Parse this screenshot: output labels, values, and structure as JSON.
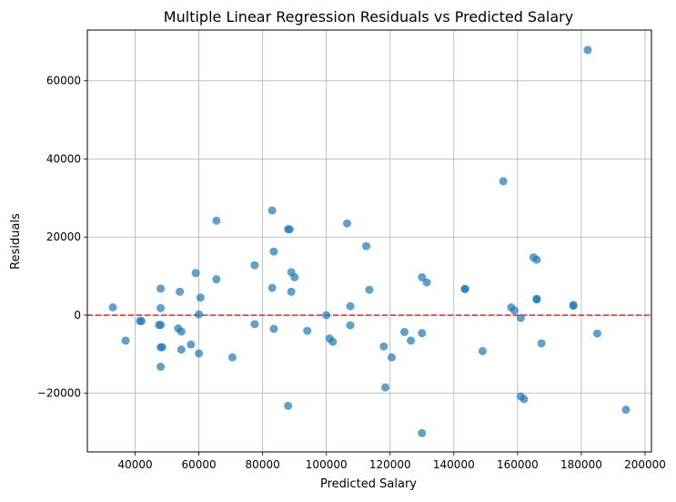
{
  "chart_data": {
    "type": "scatter",
    "title": "Multiple Linear Regression Residuals vs Predicted Salary",
    "xlabel": "Predicted Salary",
    "ylabel": "Residuals",
    "xlim": [
      25000,
      202000
    ],
    "ylim": [
      -35000,
      73000
    ],
    "xticks": [
      40000,
      60000,
      80000,
      100000,
      120000,
      140000,
      160000,
      180000,
      200000
    ],
    "xtick_labels": [
      "40000",
      "60000",
      "80000",
      "100000",
      "120000",
      "140000",
      "160000",
      "180000",
      "200000"
    ],
    "yticks": [
      -20000,
      0,
      20000,
      40000,
      60000
    ],
    "ytick_labels": [
      "−20000",
      "0",
      "20000",
      "40000",
      "60000"
    ],
    "grid": true,
    "reference_line": {
      "y": 0,
      "style": "dashed",
      "color": "#d62728"
    },
    "point_color": "#1f77b4",
    "point_alpha": 0.7,
    "points": [
      [
        33000,
        2000
      ],
      [
        37000,
        -6500
      ],
      [
        41500,
        -1500
      ],
      [
        42000,
        -1500
      ],
      [
        48000,
        6800
      ],
      [
        48000,
        1800
      ],
      [
        48000,
        -2500
      ],
      [
        47500,
        -2500
      ],
      [
        48000,
        -8200
      ],
      [
        48500,
        -8200
      ],
      [
        48000,
        -13200
      ],
      [
        54000,
        6000
      ],
      [
        53500,
        -3400
      ],
      [
        54500,
        -4200
      ],
      [
        54500,
        -8800
      ],
      [
        57500,
        -7500
      ],
      [
        59000,
        10800
      ],
      [
        60500,
        4500
      ],
      [
        60000,
        200
      ],
      [
        60000,
        -9800
      ],
      [
        65500,
        24200
      ],
      [
        65500,
        9200
      ],
      [
        70500,
        -10800
      ],
      [
        77500,
        12800
      ],
      [
        77500,
        -2300
      ],
      [
        83000,
        26800
      ],
      [
        83500,
        16300
      ],
      [
        83000,
        7000
      ],
      [
        83500,
        -3500
      ],
      [
        88000,
        22000
      ],
      [
        88500,
        22000
      ],
      [
        89000,
        11000
      ],
      [
        89000,
        6000
      ],
      [
        90000,
        9700
      ],
      [
        88000,
        -23200
      ],
      [
        94000,
        -4000
      ],
      [
        100000,
        0
      ],
      [
        101000,
        -6000
      ],
      [
        102000,
        -6800
      ],
      [
        106500,
        23500
      ],
      [
        107500,
        2300
      ],
      [
        107500,
        -2600
      ],
      [
        112500,
        17700
      ],
      [
        113500,
        6500
      ],
      [
        118000,
        -8000
      ],
      [
        118500,
        -18500
      ],
      [
        120500,
        -10800
      ],
      [
        124500,
        -4300
      ],
      [
        126500,
        -6500
      ],
      [
        130000,
        9700
      ],
      [
        131500,
        8400
      ],
      [
        130000,
        -4600
      ],
      [
        130000,
        -30200
      ],
      [
        143500,
        6700
      ],
      [
        143500,
        6700
      ],
      [
        149000,
        -9200
      ],
      [
        155500,
        34300
      ],
      [
        158000,
        2000
      ],
      [
        159000,
        1200
      ],
      [
        161000,
        -700
      ],
      [
        161000,
        -20800
      ],
      [
        162000,
        -21500
      ],
      [
        165000,
        14800
      ],
      [
        166000,
        14200
      ],
      [
        166000,
        4200
      ],
      [
        166000,
        4000
      ],
      [
        167500,
        -7200
      ],
      [
        177500,
        2600
      ],
      [
        177500,
        2400
      ],
      [
        182000,
        67900
      ],
      [
        185000,
        -4700
      ],
      [
        194000,
        -24200
      ]
    ]
  }
}
